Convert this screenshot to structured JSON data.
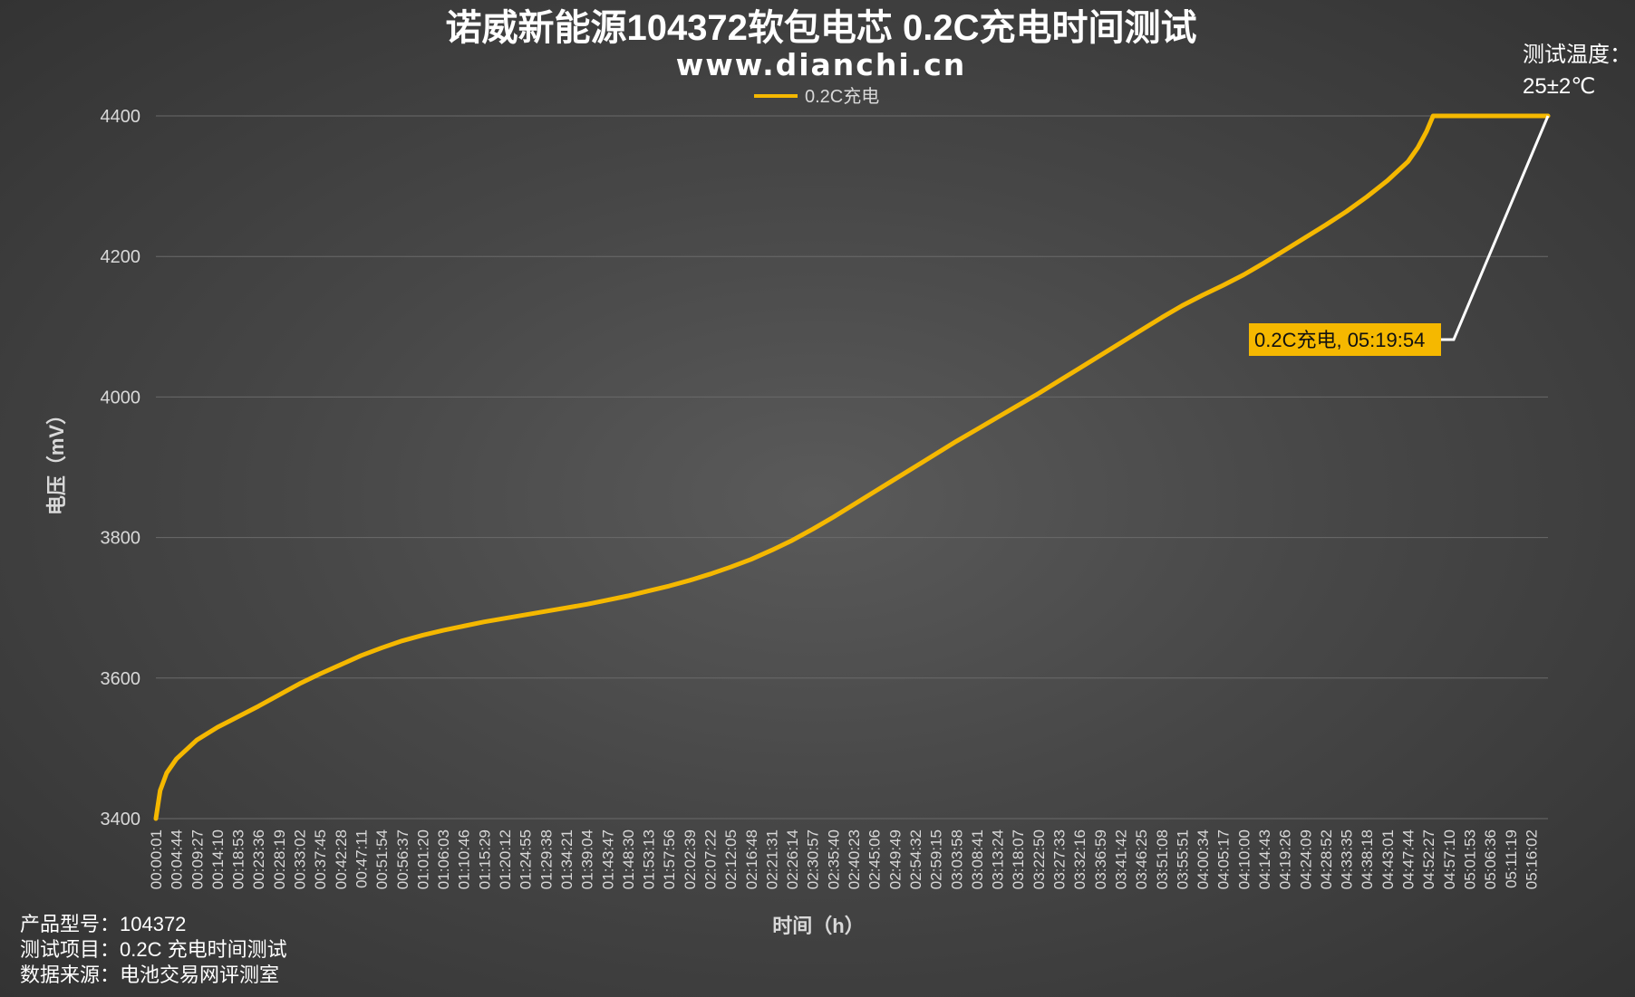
{
  "chart_data": {
    "type": "line",
    "title": "诺威新能源104372软包电芯 0.2C充电时间测试",
    "subtitle": "www.dianchi.cn",
    "xlabel": "时间（h）",
    "ylabel": "电压（mV）",
    "ylim": [
      3400,
      4400
    ],
    "yticks": [
      3400,
      3600,
      3800,
      4000,
      4200,
      4400
    ],
    "grid": true,
    "legend_position": "top-center",
    "series": [
      {
        "name": "0.2C充电",
        "color": "#f5b800",
        "points": [
          [
            "00:00:01",
            3400
          ],
          [
            "00:01:00",
            3440
          ],
          [
            "00:02:30",
            3465
          ],
          [
            "00:04:44",
            3485
          ],
          [
            "00:09:27",
            3512
          ],
          [
            "00:14:10",
            3530
          ],
          [
            "00:18:53",
            3545
          ],
          [
            "00:23:36",
            3560
          ],
          [
            "00:28:19",
            3576
          ],
          [
            "00:33:02",
            3592
          ],
          [
            "00:37:45",
            3606
          ],
          [
            "00:42:28",
            3619
          ],
          [
            "00:47:11",
            3632
          ],
          [
            "00:51:54",
            3643
          ],
          [
            "00:56:37",
            3653
          ],
          [
            "01:01:20",
            3661
          ],
          [
            "01:06:03",
            3668
          ],
          [
            "01:10:46",
            3674
          ],
          [
            "01:15:29",
            3680
          ],
          [
            "01:20:12",
            3685
          ],
          [
            "01:24:55",
            3690
          ],
          [
            "01:29:38",
            3695
          ],
          [
            "01:34:21",
            3700
          ],
          [
            "01:39:04",
            3705
          ],
          [
            "01:43:47",
            3711
          ],
          [
            "01:48:30",
            3717
          ],
          [
            "01:53:13",
            3724
          ],
          [
            "01:57:56",
            3731
          ],
          [
            "02:02:39",
            3739
          ],
          [
            "02:07:22",
            3748
          ],
          [
            "02:12:05",
            3758
          ],
          [
            "02:16:48",
            3769
          ],
          [
            "02:21:31",
            3782
          ],
          [
            "02:26:14",
            3796
          ],
          [
            "02:30:57",
            3812
          ],
          [
            "02:35:40",
            3829
          ],
          [
            "02:40:23",
            3847
          ],
          [
            "02:45:06",
            3865
          ],
          [
            "02:49:49",
            3883
          ],
          [
            "02:54:32",
            3901
          ],
          [
            "02:59:15",
            3919
          ],
          [
            "03:03:58",
            3937
          ],
          [
            "03:08:41",
            3954
          ],
          [
            "03:13:24",
            3971
          ],
          [
            "03:18:07",
            3988
          ],
          [
            "03:22:50",
            4005
          ],
          [
            "03:27:33",
            4023
          ],
          [
            "03:32:16",
            4041
          ],
          [
            "03:36:59",
            4059
          ],
          [
            "03:41:42",
            4077
          ],
          [
            "03:46:25",
            4095
          ],
          [
            "03:51:08",
            4113
          ],
          [
            "03:55:51",
            4130
          ],
          [
            "04:00:34",
            4145
          ],
          [
            "04:05:17",
            4159
          ],
          [
            "04:10:00",
            4174
          ],
          [
            "04:14:43",
            4191
          ],
          [
            "04:19:26",
            4209
          ],
          [
            "04:24:09",
            4227
          ],
          [
            "04:28:52",
            4245
          ],
          [
            "04:33:35",
            4264
          ],
          [
            "04:38:18",
            4285
          ],
          [
            "04:43:01",
            4308
          ],
          [
            "04:47:44",
            4335
          ],
          [
            "04:50:00",
            4355
          ],
          [
            "04:52:00",
            4378
          ],
          [
            "04:53:30",
            4400
          ],
          [
            "04:57:10",
            4400
          ],
          [
            "05:01:53",
            4400
          ],
          [
            "05:06:36",
            4400
          ],
          [
            "05:11:19",
            4400
          ],
          [
            "05:16:02",
            4400
          ],
          [
            "05:19:54",
            4400
          ]
        ]
      }
    ],
    "x_tick_labels": [
      "00:00:01",
      "00:04:44",
      "00:09:27",
      "00:14:10",
      "00:18:53",
      "00:23:36",
      "00:28:19",
      "00:33:02",
      "00:37:45",
      "00:42:28",
      "00:47:11",
      "00:51:54",
      "00:56:37",
      "01:01:20",
      "01:06:03",
      "01:10:46",
      "01:15:29",
      "01:20:12",
      "01:24:55",
      "01:29:38",
      "01:34:21",
      "01:39:04",
      "01:43:47",
      "01:48:30",
      "01:53:13",
      "01:57:56",
      "02:02:39",
      "02:07:22",
      "02:12:05",
      "02:16:48",
      "02:21:31",
      "02:26:14",
      "02:30:57",
      "02:35:40",
      "02:40:23",
      "02:45:06",
      "02:49:49",
      "02:54:32",
      "02:59:15",
      "03:03:58",
      "03:08:41",
      "03:13:24",
      "03:18:07",
      "03:22:50",
      "03:27:33",
      "03:32:16",
      "03:36:59",
      "03:41:42",
      "03:46:25",
      "03:51:08",
      "03:55:51",
      "04:00:34",
      "04:05:17",
      "04:10:00",
      "04:14:43",
      "04:19:26",
      "04:24:09",
      "04:28:52",
      "04:33:35",
      "04:38:18",
      "04:43:01",
      "04:47:44",
      "04:52:27",
      "04:57:10",
      "05:01:53",
      "05:06:36",
      "05:11:19",
      "05:16:02"
    ],
    "x_end": "05:19:54",
    "annotation": {
      "text": "0.2C充电, 05:19:54",
      "x": "05:19:54",
      "y": 4400,
      "box_color": "#f5b800"
    },
    "temperature_note": [
      "测试温度：",
      "25±2℃"
    ],
    "footnotes": [
      "产品型号：104372",
      "测试项目：0.2C 充电时间测试",
      "数据来源：电池交易网评测室"
    ],
    "colors": {
      "line": "#f5b800",
      "gridline": "#6a6a6a",
      "leader_line": "#ffffff"
    }
  }
}
